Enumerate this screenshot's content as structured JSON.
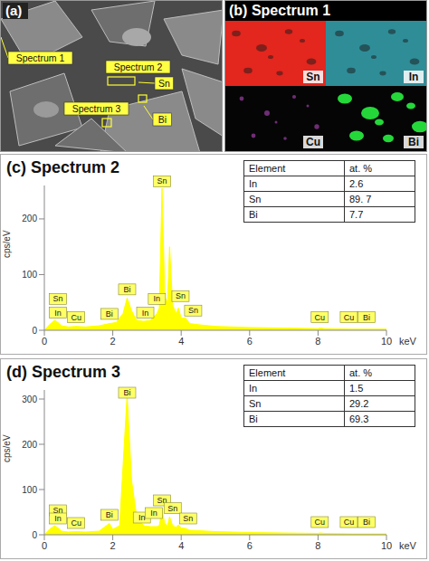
{
  "panel_a": {
    "label": "(a)",
    "annotations": [
      "Spectrum 1",
      "Spectrum 2",
      "Spectrum 3",
      "Sn",
      "Bi"
    ]
  },
  "panel_b": {
    "label": "(b)",
    "title": "Spectrum 1",
    "maps": [
      {
        "element": "Sn",
        "color": "#e3261e"
      },
      {
        "element": "In",
        "color": "#3fbccb"
      },
      {
        "element": "Cu",
        "color": "#9c3fa6"
      },
      {
        "element": "Bi",
        "color": "#24d83a"
      }
    ]
  },
  "chart_data": [
    {
      "type": "area",
      "panel": "(c)",
      "title": "Spectrum 2",
      "x": [
        0,
        0.15,
        0.3,
        0.4,
        0.5,
        0.7,
        0.93,
        1.2,
        1.6,
        1.9,
        2.1,
        2.3,
        2.42,
        2.55,
        2.7,
        2.9,
        3.1,
        3.29,
        3.36,
        3.44,
        3.52,
        3.6,
        3.66,
        3.75,
        3.85,
        3.92,
        4.0,
        4.13,
        4.25,
        4.5,
        5,
        6,
        7,
        8,
        8.05,
        8.2,
        9,
        10
      ],
      "values": [
        0,
        10,
        18,
        14,
        8,
        6,
        7,
        6,
        8,
        12,
        14,
        30,
        58,
        35,
        18,
        16,
        18,
        30,
        40,
        255,
        60,
        50,
        150,
        45,
        30,
        40,
        22,
        22,
        12,
        10,
        7,
        5,
        4,
        3,
        4,
        3,
        2,
        2
      ],
      "color": "#ffff00",
      "xlim": [
        0,
        10
      ],
      "xticks": [
        0,
        2,
        4,
        6,
        8,
        10
      ],
      "ylim": [
        0,
        260
      ],
      "yticks": [
        0,
        100,
        200
      ],
      "x_label": "keV",
      "y_label": "cps/eV",
      "annotations": [
        {
          "text": "Sn",
          "x": 0.4,
          "y": 45
        },
        {
          "text": "In",
          "x": 0.4,
          "y": 20
        },
        {
          "text": "Cu",
          "x": 0.93,
          "y": 12
        },
        {
          "text": "Bi",
          "x": 1.9,
          "y": 18
        },
        {
          "text": "Bi",
          "x": 2.42,
          "y": 62
        },
        {
          "text": "In",
          "x": 2.95,
          "y": 20
        },
        {
          "text": "In",
          "x": 3.29,
          "y": 45
        },
        {
          "text": "Sn",
          "x": 3.44,
          "y": 256
        },
        {
          "text": "Sn",
          "x": 3.98,
          "y": 50
        },
        {
          "text": "Sn",
          "x": 4.35,
          "y": 24
        },
        {
          "text": "Cu",
          "x": 8.05,
          "y": 12
        },
        {
          "text": "Cu",
          "x": 8.9,
          "y": 12
        },
        {
          "text": "Bi",
          "x": 9.42,
          "y": 12
        }
      ],
      "table": {
        "columns": [
          "Element",
          "at. %"
        ],
        "rows": [
          [
            "In",
            "2.6"
          ],
          [
            "Sn",
            "89. 7"
          ],
          [
            "Bi",
            "7.7"
          ]
        ]
      }
    },
    {
      "type": "area",
      "panel": "(d)",
      "title": "Spectrum 3",
      "x": [
        0,
        0.15,
        0.3,
        0.4,
        0.5,
        0.7,
        0.93,
        1.2,
        1.6,
        1.9,
        2.0,
        2.2,
        2.42,
        2.55,
        2.7,
        2.9,
        3.1,
        3.29,
        3.36,
        3.44,
        3.52,
        3.6,
        3.66,
        3.75,
        3.85,
        3.92,
        4.0,
        4.13,
        4.25,
        4.5,
        5,
        6,
        7,
        8,
        8.05,
        8.2,
        9,
        10
      ],
      "values": [
        0,
        12,
        20,
        15,
        8,
        6,
        7,
        6,
        8,
        25,
        12,
        20,
        310,
        120,
        40,
        20,
        18,
        18,
        20,
        55,
        25,
        20,
        40,
        20,
        16,
        22,
        15,
        14,
        10,
        9,
        7,
        5,
        4,
        3,
        4,
        3,
        2,
        2
      ],
      "color": "#ffff00",
      "xlim": [
        0,
        10
      ],
      "xticks": [
        0,
        2,
        4,
        6,
        8,
        10
      ],
      "ylim": [
        0,
        320
      ],
      "yticks": [
        0,
        100,
        200,
        300
      ],
      "x_label": "keV",
      "y_label": "cps/eV",
      "annotations": [
        {
          "text": "Sn",
          "x": 0.4,
          "y": 40
        },
        {
          "text": "In",
          "x": 0.4,
          "y": 22
        },
        {
          "text": "Cu",
          "x": 0.93,
          "y": 12
        },
        {
          "text": "Bi",
          "x": 1.9,
          "y": 30
        },
        {
          "text": "Bi",
          "x": 2.42,
          "y": 300
        },
        {
          "text": "In",
          "x": 2.85,
          "y": 24
        },
        {
          "text": "In",
          "x": 3.2,
          "y": 34
        },
        {
          "text": "Sn",
          "x": 3.44,
          "y": 62
        },
        {
          "text": "Sn",
          "x": 3.75,
          "y": 45
        },
        {
          "text": "Sn",
          "x": 4.2,
          "y": 22
        },
        {
          "text": "Cu",
          "x": 8.05,
          "y": 14
        },
        {
          "text": "Cu",
          "x": 8.9,
          "y": 14
        },
        {
          "text": "Bi",
          "x": 9.42,
          "y": 14
        }
      ],
      "table": {
        "columns": [
          "Element",
          "at. %"
        ],
        "rows": [
          [
            "In",
            "1.5"
          ],
          [
            "Sn",
            "29.2"
          ],
          [
            "Bi",
            "69.3"
          ]
        ]
      }
    }
  ]
}
